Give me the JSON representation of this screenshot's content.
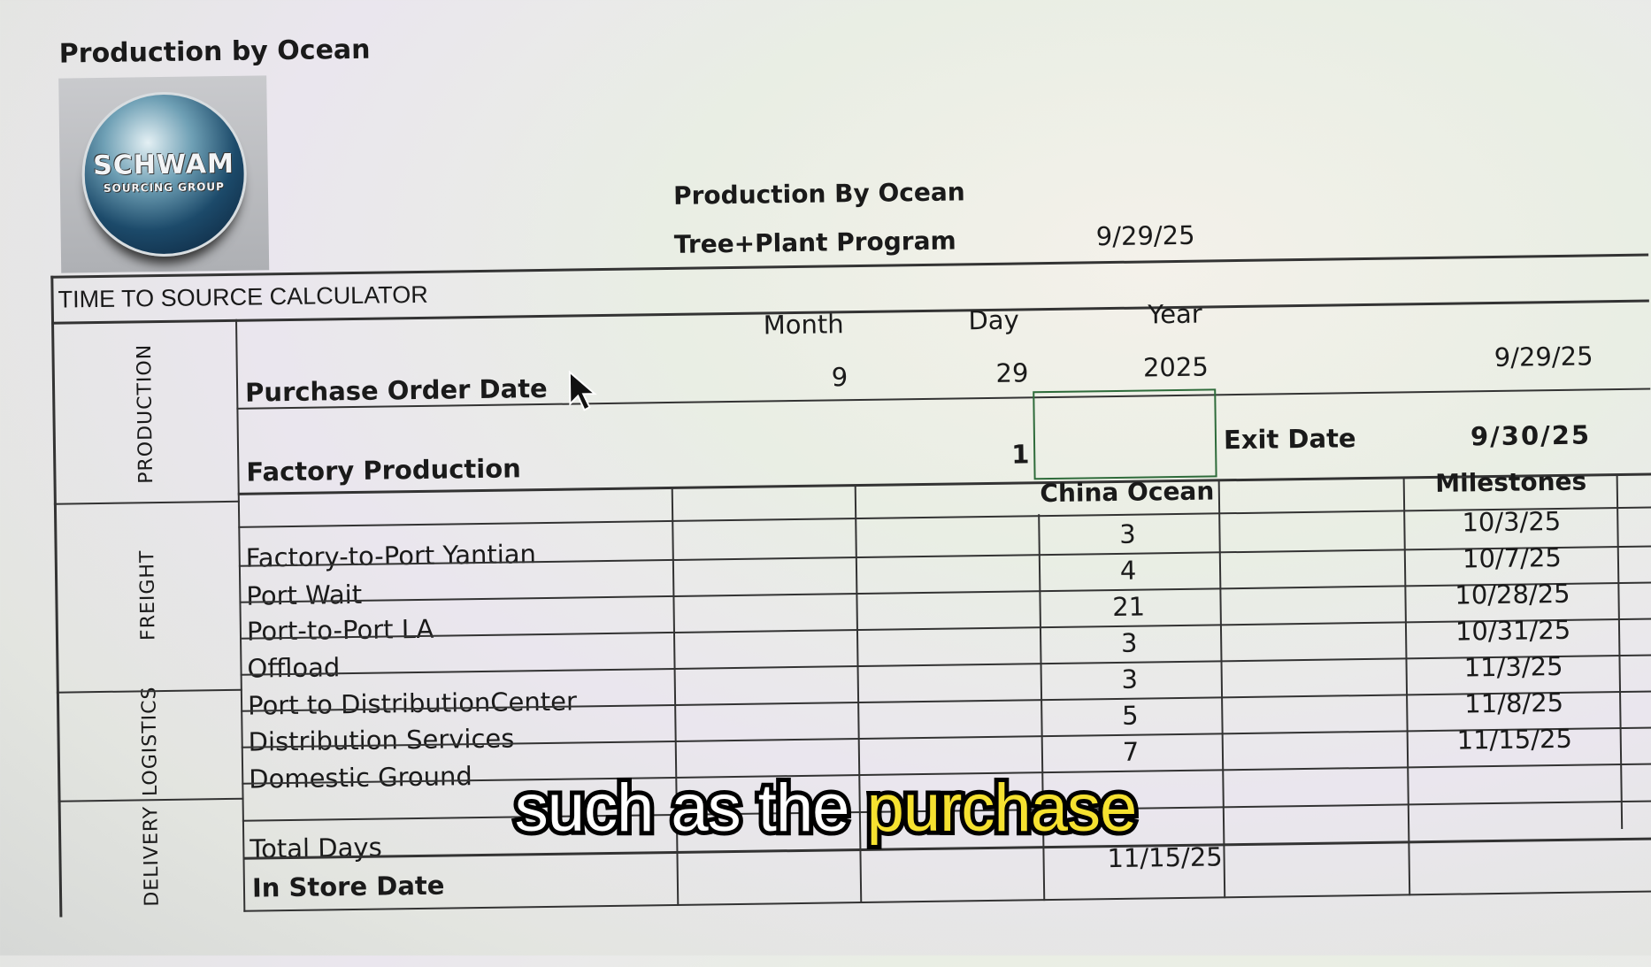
{
  "page_title": "Production by Ocean",
  "logo": {
    "line1": "SCHWAM",
    "line2": "SOURCING GROUP"
  },
  "header": {
    "title": "Production By Ocean",
    "program": "Tree+Plant Program",
    "date": "9/29/25"
  },
  "calculator": {
    "title": "TIME TO SOURCE CALCULATOR",
    "sections": [
      "PRODUCTION",
      "FREIGHT",
      "LOGISTICS",
      "DELIVERY"
    ],
    "date_headers": {
      "month": "Month",
      "day": "Day",
      "year": "Year"
    },
    "purchase_order": {
      "label": "Purchase Order Date",
      "month": "9",
      "day": "29",
      "year": "2025",
      "date": "9/29/25"
    },
    "factory": {
      "label": "Factory Production",
      "days": "1",
      "exit_label": "Exit Date",
      "exit_date": "9/30/25"
    },
    "columns": {
      "china_ocean": "China Ocean",
      "milestones": "Milestones"
    },
    "rows": [
      {
        "label": "Factory-to-Port Yantian",
        "days": "3",
        "milestone": "10/3/25"
      },
      {
        "label": "Port Wait",
        "days": "4",
        "milestone": "10/7/25"
      },
      {
        "label": "Port-to-Port LA",
        "days": "21",
        "milestone": "10/28/25"
      },
      {
        "label": "Offload",
        "days": "3",
        "milestone": "10/31/25"
      },
      {
        "label": "Port to DistributionCenter",
        "days": "3",
        "milestone": "11/3/25"
      },
      {
        "label": "Distribution Services",
        "days": "5",
        "milestone": "11/8/25"
      },
      {
        "label": "Domestic Ground",
        "days": "7",
        "milestone": "11/15/25"
      }
    ],
    "total_days_label": "Total Days",
    "in_store": {
      "label": "In Store Date",
      "date": "11/15/25"
    }
  },
  "caption": {
    "text": "such as the",
    "highlight": "purchase"
  },
  "colors": {
    "caption_highlight": "#f5e130",
    "selection_border": "#2e6b3a"
  }
}
